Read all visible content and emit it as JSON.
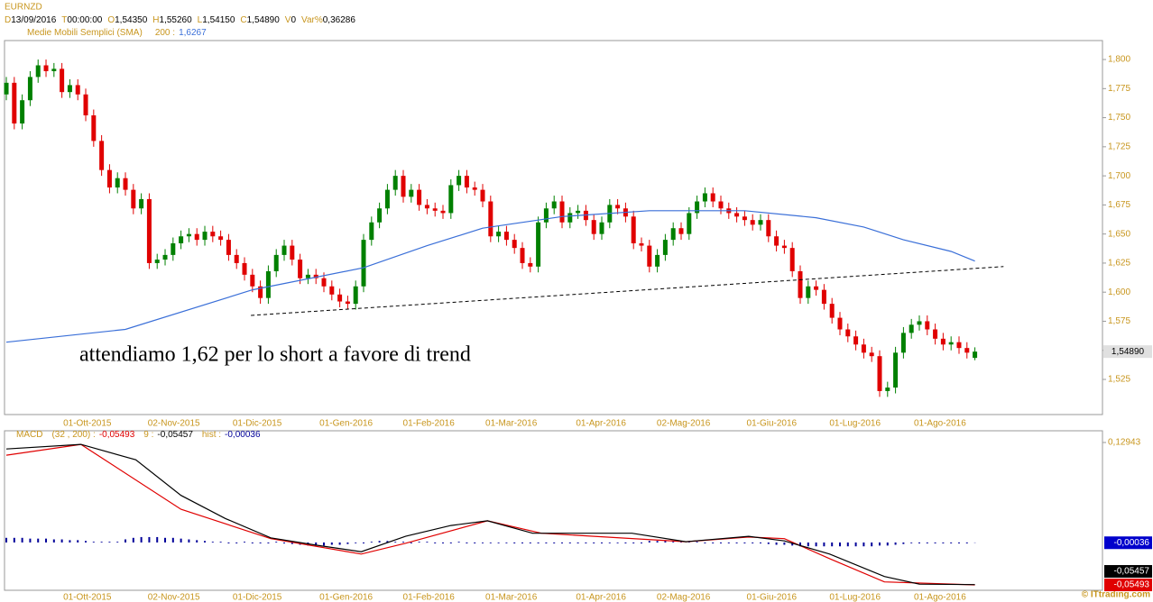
{
  "header": {
    "symbol": "EURNZD",
    "fields": [
      [
        "D",
        "13/09/2016"
      ],
      [
        "T",
        "00:00:00"
      ],
      [
        "O",
        "1,54350"
      ],
      [
        "H",
        "1,55260"
      ],
      [
        "L",
        "1,54150"
      ],
      [
        "C",
        "1,54890"
      ],
      [
        "V",
        "0"
      ],
      [
        "Var%",
        "0,36286"
      ]
    ]
  },
  "footer": "© ITtrading.com",
  "chart_data": [
    {
      "type": "candlestick",
      "title": "EURNZD",
      "up_color": "#008000",
      "down_color": "#e00000",
      "open": [
        1.77,
        1.78,
        1.745,
        1.765,
        1.785,
        1.795,
        1.79,
        1.792,
        1.772,
        1.778,
        1.77,
        1.752,
        1.73,
        1.705,
        1.69,
        1.698,
        1.688,
        1.672,
        1.68,
        1.625,
        1.628,
        1.632,
        1.642,
        1.648,
        1.65,
        1.645,
        1.652,
        1.648,
        1.645,
        1.632,
        1.625,
        1.615,
        1.605,
        1.595,
        1.618,
        1.632,
        1.64,
        1.628,
        1.612,
        1.615,
        1.612,
        1.605,
        1.598,
        1.592,
        1.59,
        1.605,
        1.645,
        1.66,
        1.672,
        1.688,
        1.7,
        1.682,
        1.688,
        1.675,
        1.672,
        1.67,
        1.668,
        1.692,
        1.7,
        1.69,
        1.688,
        1.678,
        1.648,
        1.652,
        1.645,
        1.638,
        1.625,
        1.622,
        1.66,
        1.672,
        1.678,
        1.66,
        1.668,
        1.67,
        1.662,
        1.65,
        1.66,
        1.675,
        1.672,
        1.665,
        1.642,
        1.64,
        1.622,
        1.632,
        1.645,
        1.655,
        1.65,
        1.668,
        1.678,
        1.685,
        1.678,
        1.672,
        1.668,
        1.665,
        1.662,
        1.658,
        1.662,
        1.648,
        1.64,
        1.638,
        1.618,
        1.595,
        1.605,
        1.602,
        1.59,
        1.578,
        1.568,
        1.562,
        1.555,
        1.548,
        1.545,
        1.515,
        1.518,
        1.548,
        1.565,
        1.572,
        1.575,
        1.568,
        1.56,
        1.555,
        1.557,
        1.552,
        1.5435
      ],
      "high": [
        1.785,
        1.785,
        1.77,
        1.79,
        1.8,
        1.8,
        1.797,
        1.797,
        1.783,
        1.783,
        1.775,
        1.757,
        1.735,
        1.71,
        1.703,
        1.703,
        1.693,
        1.685,
        1.685,
        1.633,
        1.637,
        1.647,
        1.653,
        1.655,
        1.655,
        1.657,
        1.657,
        1.653,
        1.65,
        1.637,
        1.63,
        1.62,
        1.61,
        1.623,
        1.637,
        1.645,
        1.645,
        1.633,
        1.62,
        1.62,
        1.617,
        1.61,
        1.603,
        1.597,
        1.61,
        1.65,
        1.665,
        1.677,
        1.693,
        1.705,
        1.705,
        1.693,
        1.693,
        1.68,
        1.677,
        1.675,
        1.697,
        1.705,
        1.705,
        1.695,
        1.693,
        1.683,
        1.657,
        1.657,
        1.65,
        1.643,
        1.63,
        1.665,
        1.677,
        1.683,
        1.683,
        1.673,
        1.675,
        1.675,
        1.667,
        1.665,
        1.68,
        1.68,
        1.677,
        1.67,
        1.647,
        1.645,
        1.637,
        1.65,
        1.66,
        1.66,
        1.673,
        1.683,
        1.69,
        1.69,
        1.683,
        1.677,
        1.673,
        1.67,
        1.667,
        1.667,
        1.667,
        1.653,
        1.645,
        1.643,
        1.623,
        1.61,
        1.61,
        1.607,
        1.595,
        1.583,
        1.573,
        1.567,
        1.56,
        1.553,
        1.55,
        1.523,
        1.553,
        1.57,
        1.577,
        1.58,
        1.58,
        1.573,
        1.565,
        1.562,
        1.562,
        1.557,
        1.5526
      ],
      "low": [
        1.765,
        1.74,
        1.74,
        1.76,
        1.78,
        1.785,
        1.785,
        1.767,
        1.767,
        1.765,
        1.747,
        1.725,
        1.7,
        1.685,
        1.685,
        1.683,
        1.667,
        1.667,
        1.62,
        1.62,
        1.623,
        1.627,
        1.637,
        1.643,
        1.64,
        1.64,
        1.643,
        1.64,
        1.627,
        1.62,
        1.61,
        1.6,
        1.59,
        1.59,
        1.613,
        1.627,
        1.623,
        1.607,
        1.607,
        1.607,
        1.6,
        1.593,
        1.587,
        1.585,
        1.585,
        1.6,
        1.64,
        1.655,
        1.667,
        1.683,
        1.677,
        1.677,
        1.67,
        1.667,
        1.665,
        1.663,
        1.663,
        1.687,
        1.685,
        1.683,
        1.673,
        1.643,
        1.643,
        1.64,
        1.633,
        1.62,
        1.617,
        1.617,
        1.655,
        1.667,
        1.655,
        1.655,
        1.663,
        1.657,
        1.645,
        1.645,
        1.655,
        1.667,
        1.66,
        1.637,
        1.635,
        1.617,
        1.617,
        1.627,
        1.64,
        1.645,
        1.645,
        1.663,
        1.673,
        1.673,
        1.667,
        1.663,
        1.66,
        1.657,
        1.653,
        1.653,
        1.643,
        1.635,
        1.633,
        1.613,
        1.59,
        1.59,
        1.597,
        1.585,
        1.573,
        1.563,
        1.557,
        1.55,
        1.543,
        1.54,
        1.51,
        1.51,
        1.513,
        1.543,
        1.56,
        1.567,
        1.563,
        1.555,
        1.55,
        1.55,
        1.547,
        1.543,
        1.5415
      ],
      "close": [
        1.78,
        1.745,
        1.765,
        1.785,
        1.795,
        1.79,
        1.792,
        1.772,
        1.778,
        1.77,
        1.752,
        1.73,
        1.705,
        1.69,
        1.698,
        1.688,
        1.672,
        1.68,
        1.625,
        1.628,
        1.632,
        1.642,
        1.648,
        1.65,
        1.645,
        1.652,
        1.648,
        1.645,
        1.632,
        1.625,
        1.615,
        1.605,
        1.595,
        1.618,
        1.632,
        1.64,
        1.628,
        1.612,
        1.615,
        1.612,
        1.605,
        1.598,
        1.592,
        1.59,
        1.605,
        1.645,
        1.66,
        1.672,
        1.688,
        1.7,
        1.682,
        1.688,
        1.675,
        1.672,
        1.67,
        1.668,
        1.692,
        1.7,
        1.69,
        1.688,
        1.678,
        1.648,
        1.652,
        1.645,
        1.638,
        1.625,
        1.622,
        1.66,
        1.672,
        1.678,
        1.66,
        1.668,
        1.67,
        1.662,
        1.65,
        1.66,
        1.675,
        1.672,
        1.665,
        1.642,
        1.64,
        1.622,
        1.632,
        1.645,
        1.655,
        1.65,
        1.668,
        1.678,
        1.685,
        1.678,
        1.672,
        1.668,
        1.665,
        1.662,
        1.658,
        1.662,
        1.648,
        1.64,
        1.638,
        1.618,
        1.595,
        1.605,
        1.602,
        1.59,
        1.578,
        1.568,
        1.562,
        1.555,
        1.548,
        1.545,
        1.515,
        1.518,
        1.548,
        1.565,
        1.572,
        1.575,
        1.568,
        1.56,
        1.555,
        1.557,
        1.552,
        1.548,
        1.5489
      ],
      "last_label": "1,54890",
      "xlim": [
        -0.23,
        138.07
      ],
      "xticks": [
        {
          "value": 10.2,
          "label": "01-Ott-2015"
        },
        {
          "value": 21.1,
          "label": "02-Nov-2015"
        },
        {
          "value": 31.6,
          "label": "01-Dic-2015"
        },
        {
          "value": 42.8,
          "label": "01-Gen-2016"
        },
        {
          "value": 53.2,
          "label": "01-Feb-2016"
        },
        {
          "value": 63.6,
          "label": "01-Mar-2016"
        },
        {
          "value": 74.9,
          "label": "01-Apr-2016"
        },
        {
          "value": 85.3,
          "label": "02-Mag-2016"
        },
        {
          "value": 96.4,
          "label": "01-Giu-2016"
        },
        {
          "value": 106.9,
          "label": "01-Lug-2016"
        },
        {
          "value": 117.6,
          "label": "01-Ago-2016"
        }
      ],
      "ylim": [
        1.4948,
        1.8163
      ],
      "yticks": [
        {
          "value": 1.525,
          "label": "1,525"
        },
        {
          "value": 1.55,
          "label": "1,550"
        },
        {
          "value": 1.575,
          "label": "1,575"
        },
        {
          "value": 1.6,
          "label": "1,600"
        },
        {
          "value": 1.625,
          "label": "1,625"
        },
        {
          "value": 1.65,
          "label": "1,650"
        },
        {
          "value": 1.675,
          "label": "1,675"
        },
        {
          "value": 1.7,
          "label": "1,700"
        },
        {
          "value": 1.725,
          "label": "1,725"
        },
        {
          "value": 1.75,
          "label": "1,750"
        },
        {
          "value": 1.775,
          "label": "1,775"
        },
        {
          "value": 1.8,
          "label": "1,800"
        }
      ],
      "overlay": {
        "name": "Medie Mobili Semplici (SMA)",
        "period": "200 :",
        "value_label": "1,6267",
        "color": "#3a6fd8",
        "x": [
          0,
          15,
          31,
          45,
          53,
          60,
          70,
          81,
          93,
          102,
          108,
          113,
          119,
          122
        ],
        "values": [
          1.557,
          1.568,
          1.602,
          1.621,
          1.64,
          1.655,
          1.665,
          1.67,
          1.67,
          1.664,
          1.656,
          1.645,
          1.635,
          1.6267
        ]
      },
      "trendline": {
        "x": [
          30.8,
          125.6
        ],
        "values": [
          1.58,
          1.622
        ],
        "color": "#000000"
      },
      "annotation": "attendiamo 1,62 per lo short a favore di trend"
    },
    {
      "type": "macd",
      "title": "MACD",
      "ylim": [
        -0.0619,
        0.1446
      ],
      "yticks": [
        {
          "value": 0.12943,
          "label": "0,12943"
        }
      ],
      "series": [
        {
          "name": "(32 , 200) :",
          "color": "#e00000",
          "value_label": "-0,05493",
          "x": [
            0,
            9.4,
            22,
            33.3,
            44.7,
            50.3,
            60.6,
            67.4,
            85.6,
            93.5,
            98,
            103.7,
            110.6,
            122
          ],
          "values": [
            0.113,
            0.127,
            0.043,
            0.005,
            -0.015,
            -0.001,
            0.028,
            0.012,
            0.001,
            0.007,
            0.005,
            -0.021,
            -0.051,
            -0.05493
          ]
        },
        {
          "name": "9 :",
          "color": "#000000",
          "value_label": "-0,05457",
          "x": [
            0,
            9.4,
            16.3,
            22,
            27.6,
            33.3,
            39,
            44.7,
            50.3,
            56,
            60.6,
            66.3,
            73,
            78.8,
            85.6,
            93.5,
            98,
            103.7,
            110.6,
            115,
            122
          ],
          "values": [
            0.121,
            0.127,
            0.107,
            0.061,
            0.031,
            0.006,
            -0.0035,
            -0.012,
            0.008,
            0.022,
            0.028,
            0.012,
            0.012,
            0.012,
            0.001,
            0.008,
            0.002,
            -0.015,
            -0.044,
            -0.054,
            -0.05457
          ]
        }
      ],
      "hist": {
        "name": "hist :",
        "color": "#000099",
        "value_label": "-0,00036",
        "values": [
          0.006,
          0.006,
          0.006,
          0.005,
          0.005,
          0.005,
          0.004,
          0.004,
          0.003,
          0.003,
          0.002,
          0.001,
          0.001,
          0.001,
          0.001,
          0.004,
          0.006,
          0.007,
          0.007,
          0.007,
          0.006,
          0.006,
          0.005,
          0.004,
          0.003,
          0.002,
          0.001,
          0.001,
          0,
          0,
          0.001,
          0,
          0,
          0,
          0.001,
          0,
          -0.002,
          -0.003,
          -0.004,
          -0.004,
          -0.004,
          -0.003,
          -0.003,
          -0.002,
          -0.001,
          0,
          0.001,
          0.002,
          0.002,
          0.001,
          0.001,
          0,
          0.001,
          0.001,
          0,
          0,
          0,
          0.001,
          0,
          0,
          -0.001,
          -0.001,
          -0.001,
          -0.001,
          0,
          0,
          0,
          0,
          0,
          0,
          0,
          0,
          0,
          0,
          0,
          0,
          -0.001,
          -0.001,
          0,
          0,
          0,
          0.002,
          0.002,
          0.002,
          0.001,
          0.001,
          0.001,
          0.001,
          0,
          0,
          0,
          0,
          0,
          0,
          0,
          0,
          -0.002,
          -0.003,
          -0.003,
          -0.004,
          -0.005,
          -0.005,
          -0.005,
          -0.005,
          -0.005,
          -0.005,
          -0.005,
          -0.005,
          -0.005,
          -0.005,
          -0.004,
          -0.004,
          -0.003,
          -0.002,
          -0.001,
          0,
          0,
          0,
          0,
          0,
          0,
          0,
          -0.00036
        ]
      }
    }
  ]
}
